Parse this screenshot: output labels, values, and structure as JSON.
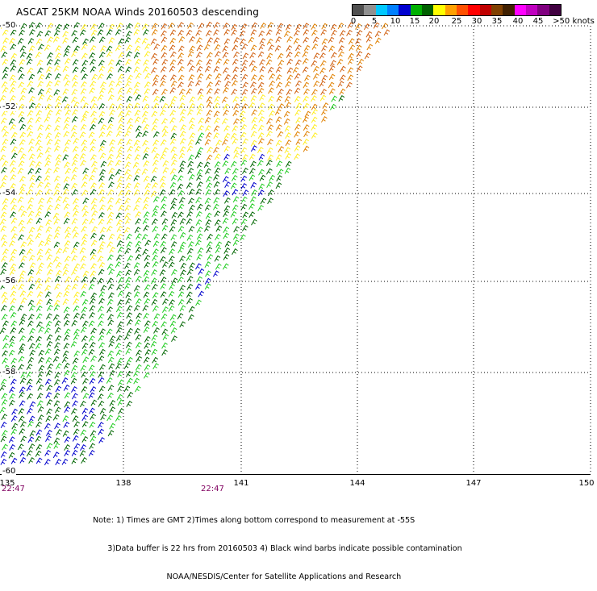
{
  "title": "ASCAT 25KM NOAA Winds 20160503 descending",
  "scale": {
    "labels": [
      "0",
      "5",
      "10",
      "15",
      "20",
      "25",
      "30",
      "35",
      "40",
      "45",
      ">50 knots"
    ],
    "colors": [
      "#505050",
      "#909090",
      "#00c8ff",
      "#0080ff",
      "#0000d0",
      "#00b000",
      "#006000",
      "#ffff00",
      "#ffa000",
      "#ff5000",
      "#ff0000",
      "#c00000",
      "#804000",
      "#402000",
      "#ff00ff",
      "#c000c0",
      "#800080",
      "#400040"
    ]
  },
  "axes": {
    "lat_labels": [
      "-50",
      "-52",
      "-54",
      "-56",
      "-58",
      "-60"
    ],
    "lon_labels": [
      "135",
      "138",
      "141",
      "144",
      "147",
      "150"
    ]
  },
  "time_labels": {
    "left": "22:47",
    "middle": "22:47"
  },
  "notes": [
    "Note: 1) Times are GMT 2)Times along bottom correspond to measurement at -55S",
    "      3)Data buffer is 22 hrs from 20160503 4) Black wind barbs indicate possible contamination",
    "                              NOAA/NESDIS/Center for Satellite Applications and Research"
  ],
  "wind_colors": {
    "blue": "#0000cc",
    "green_light": "#22cc22",
    "green_dark": "#006600",
    "yellow": "#ffee22",
    "orange": "#e08000",
    "brown_orange": "#d06010"
  }
}
